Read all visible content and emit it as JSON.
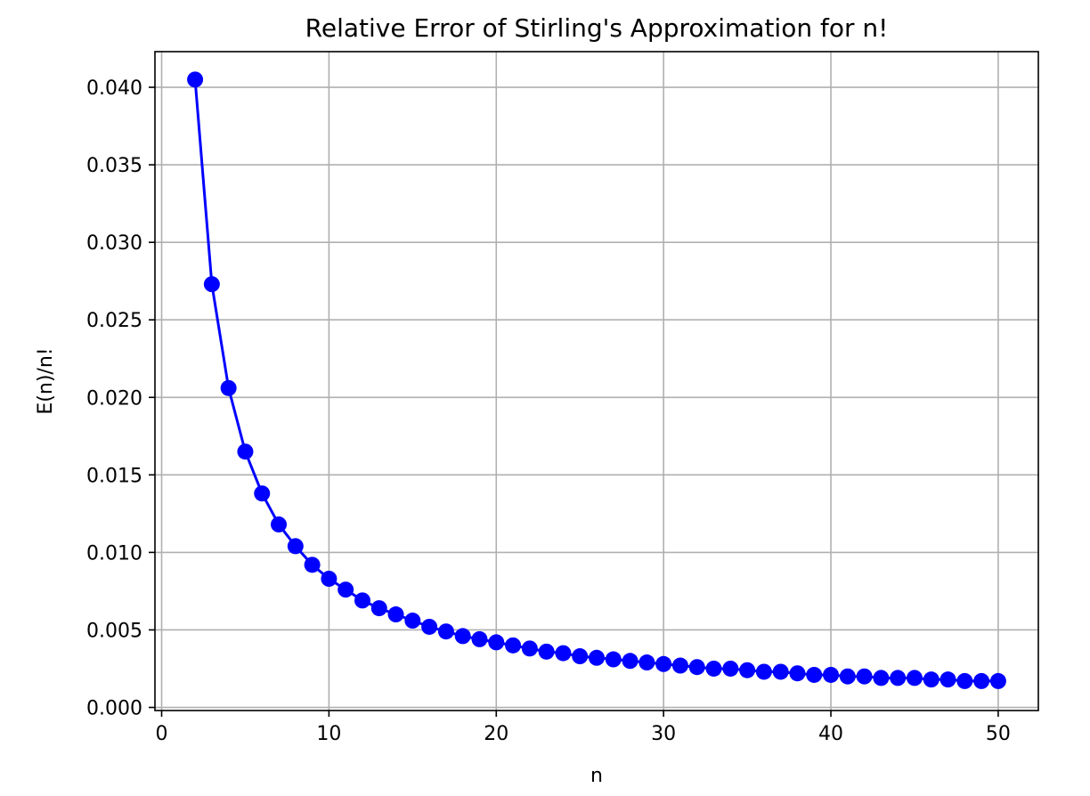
{
  "chart_data": {
    "type": "line",
    "title": "Relative Error of Stirling's Approximation for n!",
    "xlabel": "n",
    "ylabel": "E(n)/n!",
    "xlim": [
      -0.4,
      52.4
    ],
    "ylim": [
      -0.0002,
      0.0423
    ],
    "xticks": [
      0,
      10,
      20,
      30,
      40,
      50
    ],
    "xtick_labels": [
      "0",
      "10",
      "20",
      "30",
      "40",
      "50"
    ],
    "yticks": [
      0.0,
      0.005,
      0.01,
      0.015,
      0.02,
      0.025,
      0.03,
      0.035,
      0.04
    ],
    "ytick_labels": [
      "0.000",
      "0.005",
      "0.010",
      "0.015",
      "0.020",
      "0.025",
      "0.030",
      "0.035",
      "0.040"
    ],
    "grid": true,
    "marker": "circle",
    "color": "#0000ff",
    "x": [
      2,
      3,
      4,
      5,
      6,
      7,
      8,
      9,
      10,
      11,
      12,
      13,
      14,
      15,
      16,
      17,
      18,
      19,
      20,
      21,
      22,
      23,
      24,
      25,
      26,
      27,
      28,
      29,
      30,
      31,
      32,
      33,
      34,
      35,
      36,
      37,
      38,
      39,
      40,
      41,
      42,
      43,
      44,
      45,
      46,
      47,
      48,
      49,
      50
    ],
    "values": [
      0.0405,
      0.0273,
      0.0206,
      0.0165,
      0.0138,
      0.0118,
      0.0104,
      0.0092,
      0.0083,
      0.0076,
      0.0069,
      0.0064,
      0.006,
      0.0056,
      0.0052,
      0.0049,
      0.0046,
      0.0044,
      0.0042,
      0.004,
      0.0038,
      0.0036,
      0.0035,
      0.0033,
      0.0032,
      0.0031,
      0.003,
      0.0029,
      0.0028,
      0.0027,
      0.0026,
      0.0025,
      0.0025,
      0.0024,
      0.0023,
      0.0023,
      0.0022,
      0.0021,
      0.0021,
      0.002,
      0.002,
      0.0019,
      0.0019,
      0.0019,
      0.0018,
      0.0018,
      0.0017,
      0.0017,
      0.0017
    ]
  }
}
